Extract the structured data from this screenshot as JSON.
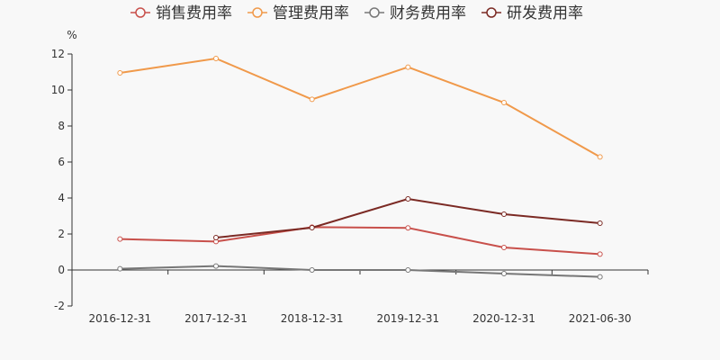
{
  "chart_data": {
    "type": "line",
    "title": "",
    "ylabel": "%",
    "xlabel": "",
    "categories": [
      "2016-12-31",
      "2017-12-31",
      "2018-12-31",
      "2019-12-31",
      "2020-12-31",
      "2021-06-30"
    ],
    "ylim": [
      -2,
      12
    ],
    "yticks": [
      -2,
      0,
      2,
      4,
      6,
      8,
      10,
      12
    ],
    "grid": false,
    "legend_position": "top-center",
    "series": [
      {
        "name": "销售费用率",
        "color": "#c8504b",
        "values": [
          1.72,
          1.58,
          2.38,
          2.34,
          1.25,
          0.88
        ]
      },
      {
        "name": "管理费用率",
        "color": "#f0994a",
        "values": [
          10.95,
          11.75,
          9.48,
          11.27,
          9.3,
          6.28
        ]
      },
      {
        "name": "财务费用率",
        "color": "#777777",
        "values": [
          0.07,
          0.22,
          0.0,
          0.0,
          -0.2,
          -0.38
        ]
      },
      {
        "name": "研发费用率",
        "color": "#7b2a24",
        "values": [
          null,
          1.8,
          2.35,
          3.95,
          3.1,
          2.6
        ]
      }
    ]
  }
}
